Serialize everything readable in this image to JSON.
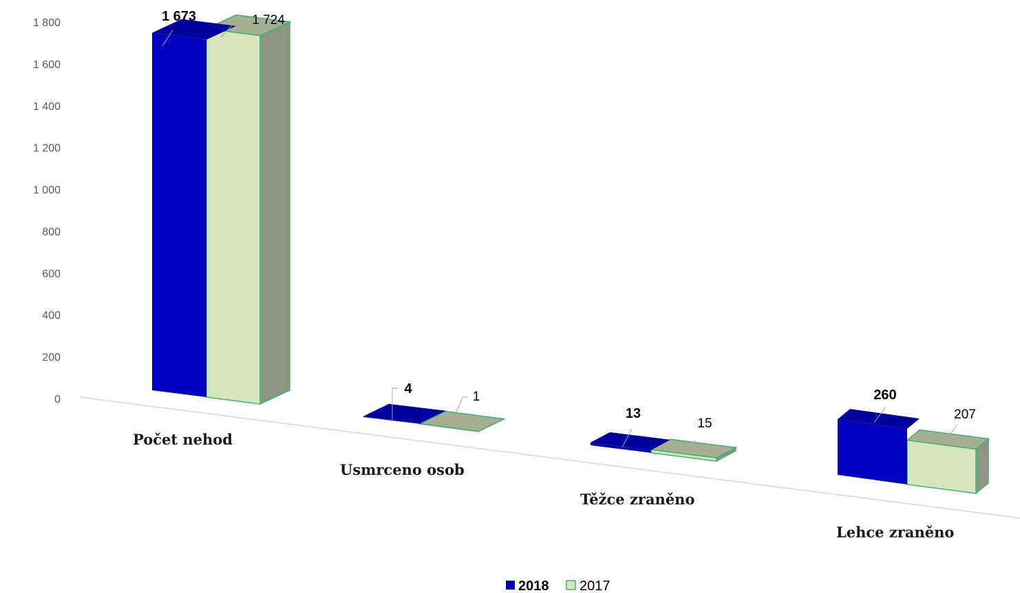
{
  "chart_data": {
    "type": "bar",
    "categories": [
      "Počet nehod",
      "Usmrceno osob",
      "Těžce zraněno",
      "Lehce zraněno"
    ],
    "series": [
      {
        "name": "2018",
        "values": [
          1673,
          4,
          13,
          260
        ],
        "color": "#0000c0",
        "side": "#000090",
        "top": "#00009e"
      },
      {
        "name": "2017",
        "values": [
          1724,
          1,
          15,
          207
        ],
        "color": "#d8e4bc",
        "side": "#8c9680",
        "top": "#a6af93",
        "border": "#3cb371"
      }
    ],
    "data_labels": {
      "2018": [
        "1 673",
        "4",
        "13",
        "260"
      ],
      "2017": [
        "1 724",
        "1",
        "15",
        "207"
      ]
    },
    "y_ticks": [
      {
        "value": 0,
        "label": "0"
      },
      {
        "value": 200,
        "label": "200"
      },
      {
        "value": 400,
        "label": "400"
      },
      {
        "value": 600,
        "label": "600"
      },
      {
        "value": 800,
        "label": "800"
      },
      {
        "value": 1000,
        "label": "1 000"
      },
      {
        "value": 1200,
        "label": "1 200"
      },
      {
        "value": 1400,
        "label": "1 400"
      },
      {
        "value": 1600,
        "label": "1 600"
      },
      {
        "value": 1800,
        "label": "1 800"
      }
    ],
    "ylim": [
      0,
      1800
    ],
    "legend": {
      "position": "bottom",
      "labels": [
        "2018",
        "2017"
      ]
    },
    "grid": false,
    "style": "3d-column"
  }
}
